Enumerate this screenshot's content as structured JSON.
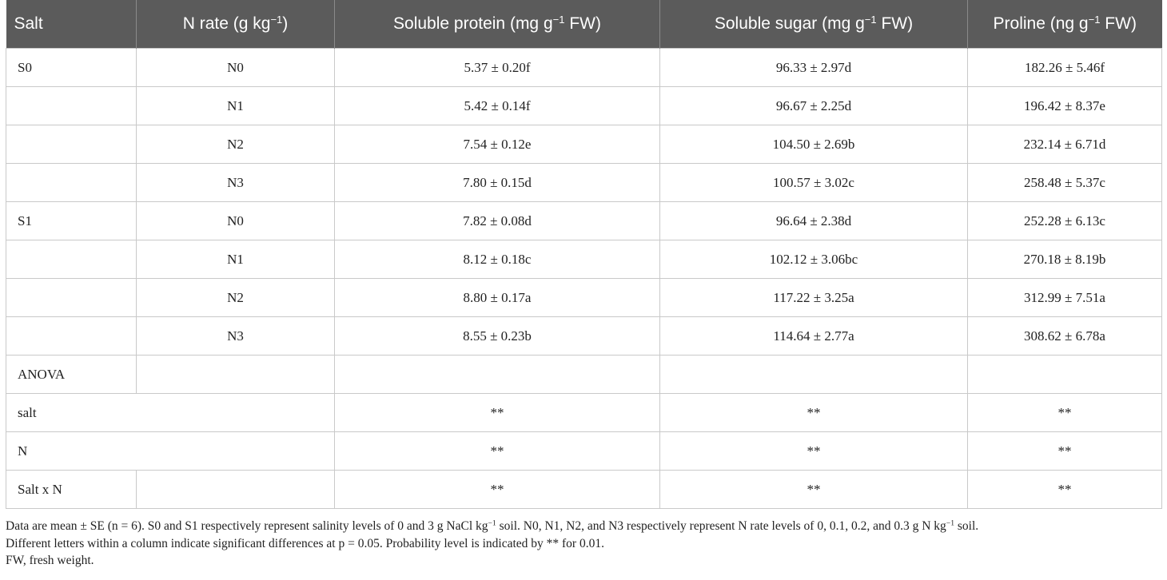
{
  "table": {
    "header": [
      "Salt",
      [
        "N rate (g kg",
        "−1",
        ")"
      ],
      [
        "Soluble protein (mg g",
        "−1",
        " FW)"
      ],
      [
        "Soluble sugar (mg g",
        "−1",
        " FW)"
      ],
      [
        "Proline (ng g",
        "−1",
        " FW)"
      ]
    ],
    "rows": [
      [
        "S0",
        "N0",
        "5.37 ± 0.20f",
        "96.33 ± 2.97d",
        "182.26 ± 5.46f"
      ],
      [
        null,
        "N1",
        "5.42 ± 0.14f",
        "96.67 ± 2.25d",
        "196.42 ± 8.37e"
      ],
      [
        null,
        "N2",
        "7.54 ± 0.12e",
        "104.50 ± 2.69b",
        "232.14 ± 6.71d"
      ],
      [
        null,
        "N3",
        "7.80 ± 0.15d",
        "100.57 ± 3.02c",
        "258.48 ± 5.37c"
      ],
      [
        "S1",
        "N0",
        "7.82 ± 0.08d",
        "96.64 ± 2.38d",
        "252.28 ± 6.13c"
      ],
      [
        null,
        "N1",
        "8.12 ± 0.18c",
        "102.12 ± 3.06bc",
        "270.18 ± 8.19b"
      ],
      [
        null,
        "N2",
        "8.80 ± 0.17a",
        "117.22 ± 3.25a",
        "312.99 ± 7.51a"
      ],
      [
        null,
        "N3",
        "8.55 ± 0.23b",
        "114.64 ± 2.77a",
        "308.62 ± 6.78a"
      ],
      [
        "ANOVA",
        null,
        null,
        null,
        null
      ],
      [
        "salt",
        "**",
        "**",
        "**"
      ],
      [
        "N",
        "**",
        "**",
        "**"
      ],
      [
        "Salt x N",
        null,
        "**",
        "**",
        "**"
      ]
    ]
  },
  "footnotes": [
    [
      "Data are mean ± SE (n = 6). S0 and S1 respectively represent salinity levels of 0 and 3 g NaCl kg",
      "−1",
      " soil. N0, N1, N2, and N3 respectively represent N rate levels of 0, 0.1, 0.2, and 0.3 g N kg",
      "−1",
      " soil."
    ],
    [
      "Different letters within a column indicate significant differences at p = 0.05. Probability level is indicated by ** for 0.01."
    ],
    [
      "FW, fresh weight."
    ]
  ]
}
